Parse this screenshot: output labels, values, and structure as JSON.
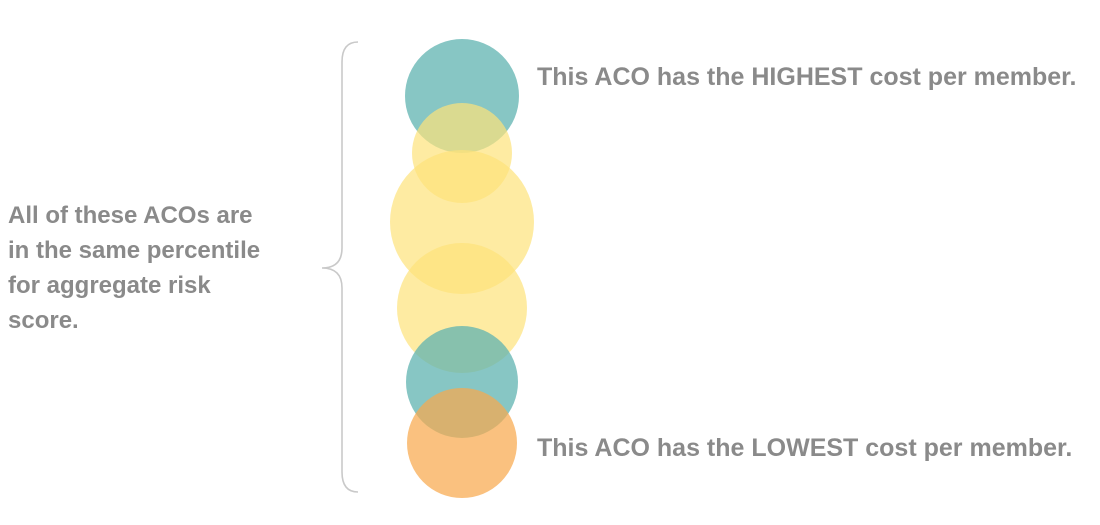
{
  "left_label": {
    "lines": [
      "All of these ACOs are",
      "in the same percentile",
      "for aggregate risk",
      "score."
    ]
  },
  "callouts": {
    "highest": "This ACO has the HIGHEST cost per member.",
    "lowest": "This ACO has the LOWEST cost per member."
  },
  "colors": {
    "teal": "#5fb3b0",
    "yellow": "#fde27a",
    "orange": "#f8a94d",
    "text": "#8a8a8a",
    "bracket": "#c9c9c9"
  },
  "circles": [
    {
      "id": "aco-highest-cost",
      "color": "teal"
    },
    {
      "id": "aco-2",
      "color": "yellow"
    },
    {
      "id": "aco-3",
      "color": "yellow"
    },
    {
      "id": "aco-4",
      "color": "yellow"
    },
    {
      "id": "aco-5",
      "color": "teal"
    },
    {
      "id": "aco-lowest-cost",
      "color": "orange"
    }
  ]
}
